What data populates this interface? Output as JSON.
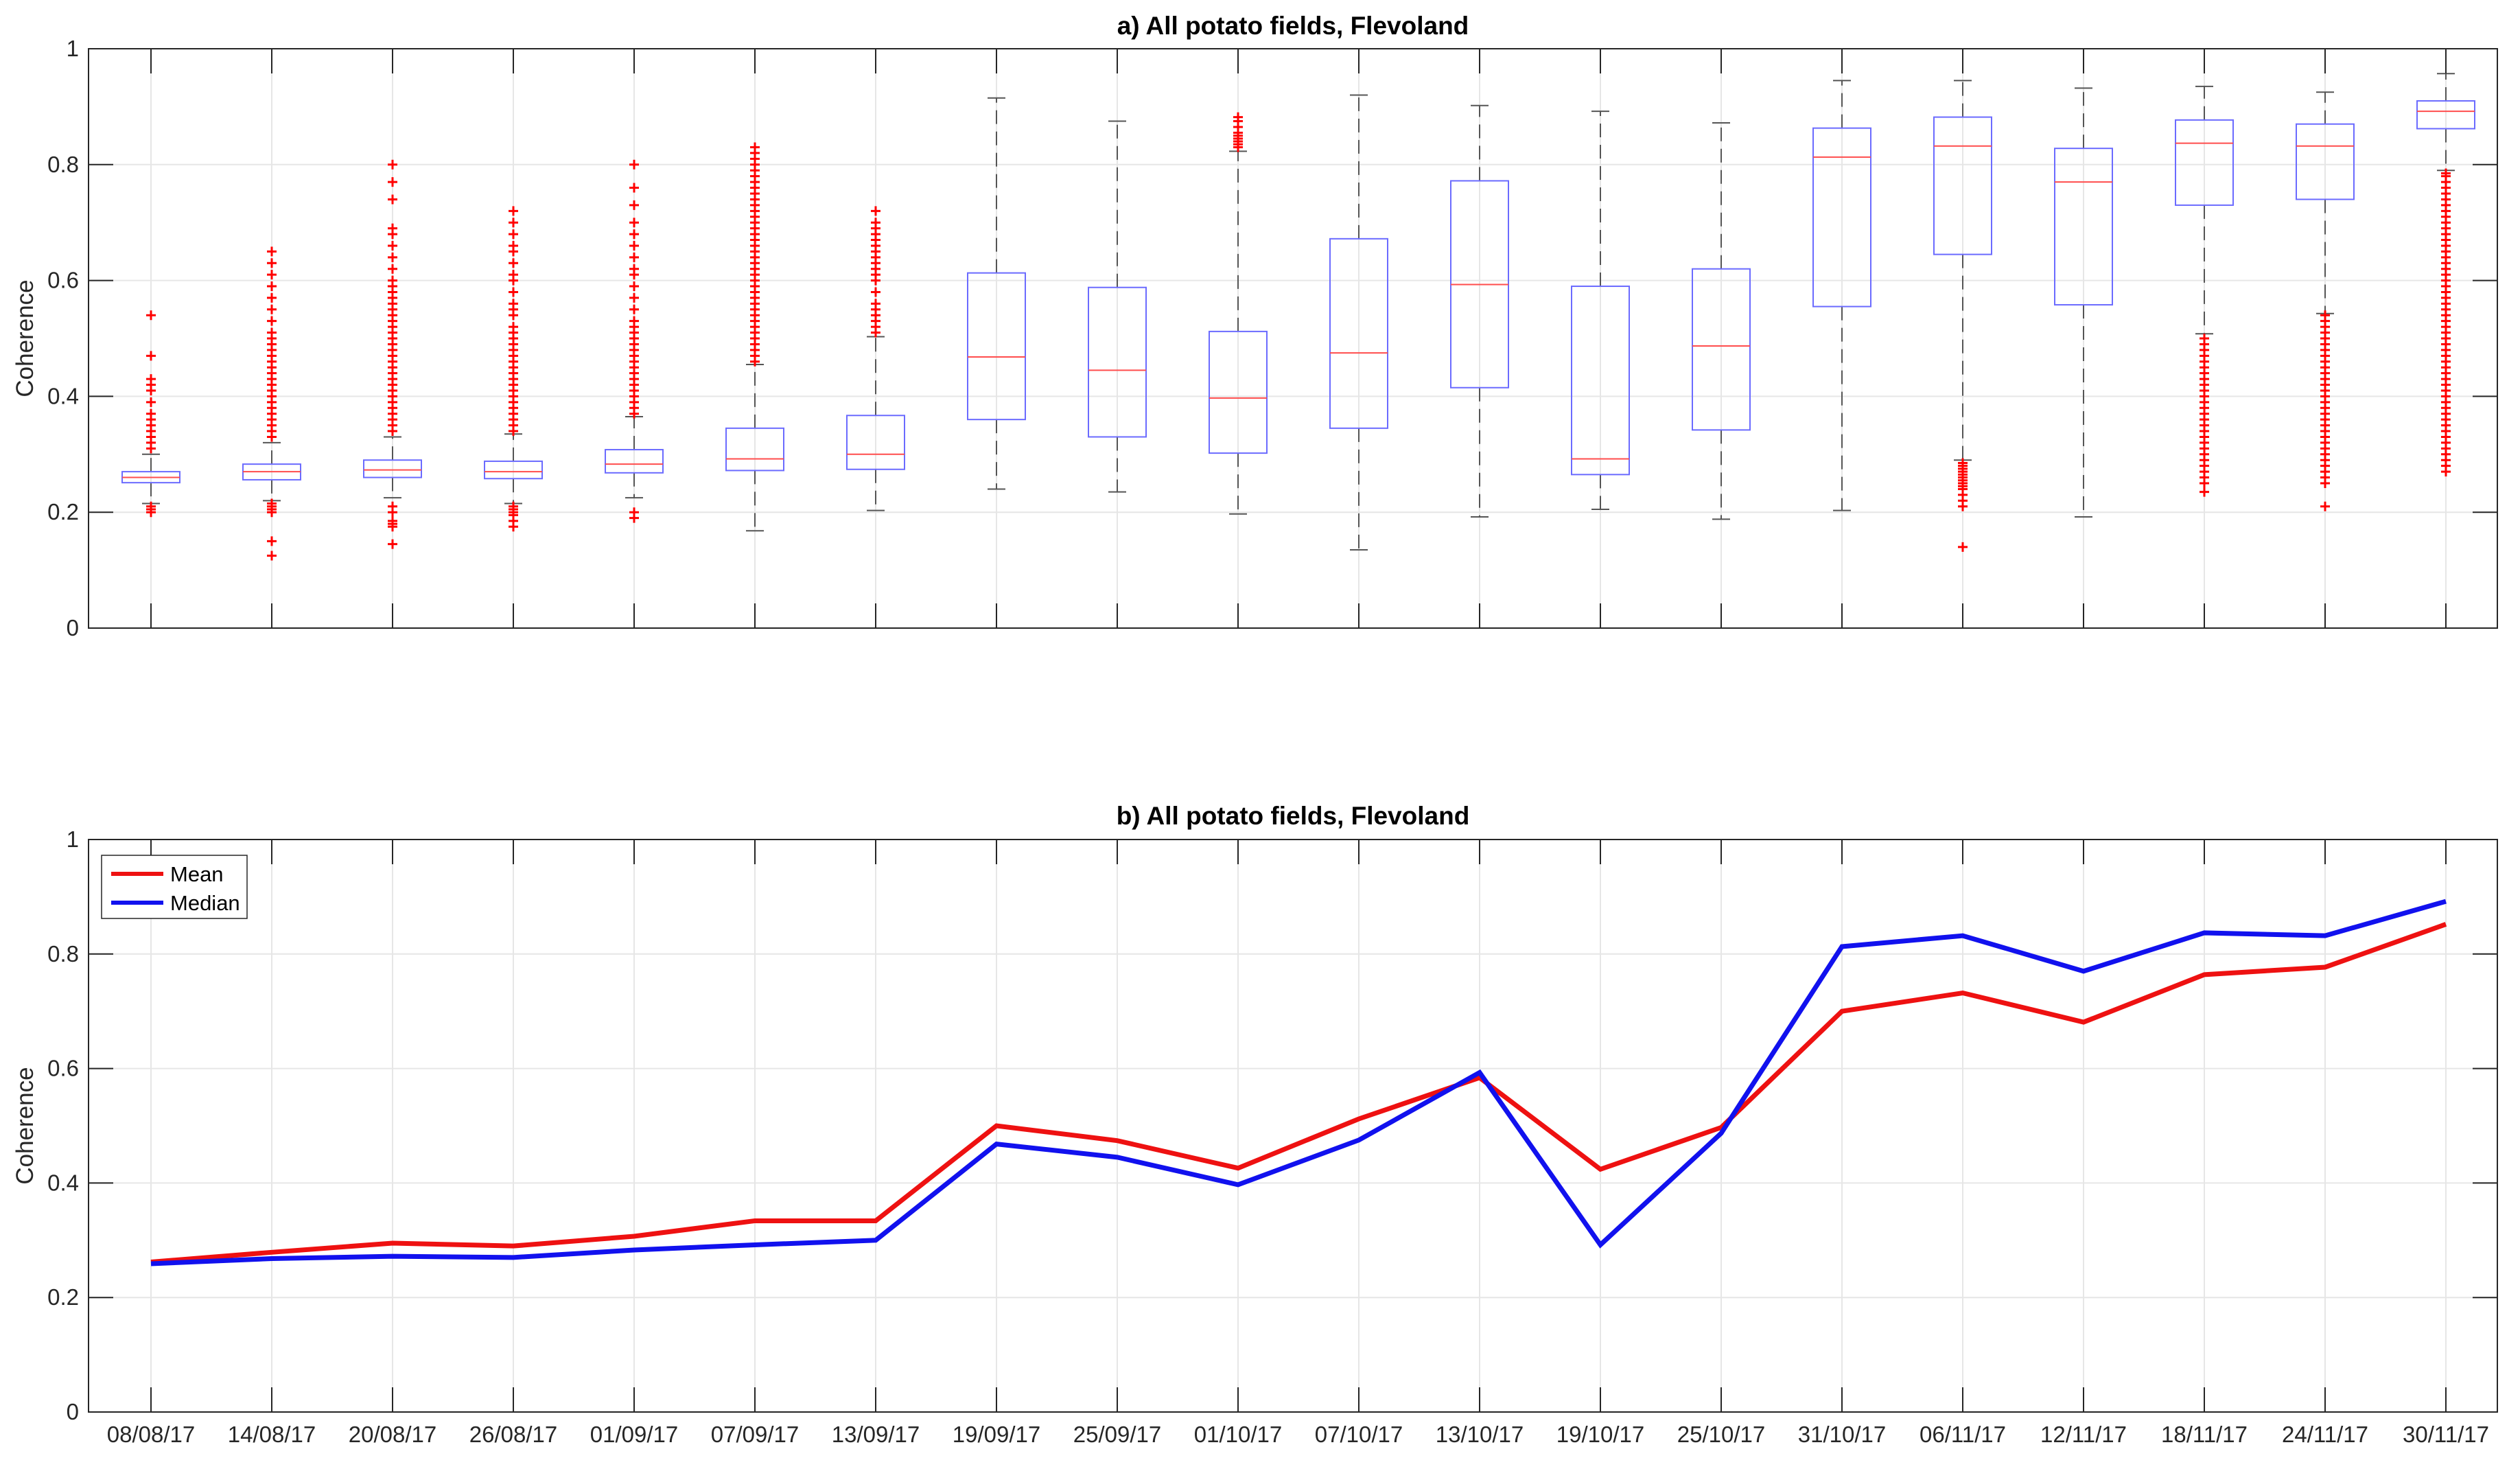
{
  "figure": {
    "dates": [
      "08/08/17",
      "14/08/17",
      "20/08/17",
      "26/08/17",
      "01/09/17",
      "07/09/17",
      "13/09/17",
      "19/09/17",
      "25/09/17",
      "01/10/17",
      "07/10/17",
      "13/10/17",
      "19/10/17",
      "25/10/17",
      "31/10/17",
      "06/11/17",
      "12/11/17",
      "18/11/17",
      "24/11/17",
      "30/11/17"
    ],
    "yticks": [
      "0",
      "0.2",
      "0.4",
      "0.6",
      "0.8",
      "1"
    ],
    "colors": {
      "box": "#6b6bff",
      "median": "#ff4d4d",
      "whisker": "#555555",
      "outlier": "#ff0000",
      "mean_line": "#ee1111",
      "median_line": "#1111ee",
      "grid": "#e6e6e6"
    }
  },
  "chart_data": [
    {
      "type": "box",
      "title": "a) All potato fields, Flevoland",
      "ylabel": "Coherence",
      "ylim": [
        0,
        1
      ],
      "grid": true,
      "categories": [
        "08/08/17",
        "14/08/17",
        "20/08/17",
        "26/08/17",
        "01/09/17",
        "07/09/17",
        "13/09/17",
        "19/09/17",
        "25/09/17",
        "01/10/17",
        "07/10/17",
        "13/10/17",
        "19/10/17",
        "25/10/17",
        "31/10/17",
        "06/11/17",
        "12/11/17",
        "18/11/17",
        "24/11/17",
        "30/11/17"
      ],
      "boxes": [
        {
          "whisker_low": 0.215,
          "q1": 0.251,
          "median": 0.26,
          "q3": 0.27,
          "whisker_high": 0.3,
          "outliers_low": [
            0.2,
            0.205,
            0.21
          ],
          "outliers_high": [
            0.31,
            0.32,
            0.33,
            0.34,
            0.35,
            0.36,
            0.37,
            0.39,
            0.41,
            0.42,
            0.43,
            0.47,
            0.54
          ]
        },
        {
          "whisker_low": 0.22,
          "q1": 0.256,
          "median": 0.27,
          "q3": 0.283,
          "whisker_high": 0.32,
          "outliers_low": [
            0.2,
            0.205,
            0.21,
            0.215,
            0.15,
            0.125
          ],
          "outliers_high": [
            0.33,
            0.34,
            0.35,
            0.36,
            0.37,
            0.38,
            0.39,
            0.4,
            0.41,
            0.42,
            0.43,
            0.44,
            0.45,
            0.46,
            0.47,
            0.48,
            0.49,
            0.5,
            0.51,
            0.53,
            0.55,
            0.57,
            0.59,
            0.61,
            0.63,
            0.65
          ]
        },
        {
          "whisker_low": 0.225,
          "q1": 0.26,
          "median": 0.273,
          "q3": 0.29,
          "whisker_high": 0.33,
          "outliers_low": [
            0.21,
            0.2,
            0.185,
            0.18,
            0.175,
            0.145
          ],
          "outliers_high": [
            0.34,
            0.35,
            0.36,
            0.37,
            0.38,
            0.39,
            0.4,
            0.41,
            0.42,
            0.43,
            0.44,
            0.45,
            0.46,
            0.47,
            0.48,
            0.49,
            0.5,
            0.51,
            0.52,
            0.53,
            0.54,
            0.55,
            0.56,
            0.57,
            0.58,
            0.59,
            0.6,
            0.62,
            0.64,
            0.66,
            0.68,
            0.69,
            0.74,
            0.77,
            0.8
          ]
        },
        {
          "whisker_low": 0.215,
          "q1": 0.258,
          "median": 0.27,
          "q3": 0.288,
          "whisker_high": 0.335,
          "outliers_low": [
            0.21,
            0.205,
            0.2,
            0.195,
            0.185,
            0.175
          ],
          "outliers_high": [
            0.34,
            0.35,
            0.36,
            0.37,
            0.38,
            0.39,
            0.4,
            0.41,
            0.42,
            0.43,
            0.44,
            0.45,
            0.46,
            0.47,
            0.48,
            0.49,
            0.5,
            0.51,
            0.52,
            0.54,
            0.55,
            0.56,
            0.58,
            0.6,
            0.61,
            0.63,
            0.65,
            0.66,
            0.68,
            0.7,
            0.72
          ]
        },
        {
          "whisker_low": 0.225,
          "q1": 0.268,
          "median": 0.283,
          "q3": 0.308,
          "whisker_high": 0.365,
          "outliers_low": [
            0.2,
            0.19
          ],
          "outliers_high": [
            0.37,
            0.38,
            0.39,
            0.4,
            0.41,
            0.42,
            0.43,
            0.44,
            0.45,
            0.46,
            0.47,
            0.48,
            0.49,
            0.5,
            0.51,
            0.52,
            0.53,
            0.55,
            0.57,
            0.59,
            0.61,
            0.62,
            0.64,
            0.66,
            0.68,
            0.7,
            0.73,
            0.76,
            0.8
          ]
        },
        {
          "whisker_low": 0.168,
          "q1": 0.272,
          "median": 0.292,
          "q3": 0.345,
          "whisker_high": 0.455,
          "outliers_low": [],
          "outliers_high": [
            0.46,
            0.47,
            0.48,
            0.49,
            0.5,
            0.51,
            0.52,
            0.53,
            0.54,
            0.55,
            0.56,
            0.57,
            0.58,
            0.59,
            0.6,
            0.61,
            0.62,
            0.63,
            0.64,
            0.65,
            0.66,
            0.67,
            0.68,
            0.69,
            0.7,
            0.71,
            0.72,
            0.73,
            0.74,
            0.75,
            0.76,
            0.77,
            0.78,
            0.79,
            0.8,
            0.81,
            0.82,
            0.83
          ]
        },
        {
          "whisker_low": 0.203,
          "q1": 0.274,
          "median": 0.3,
          "q3": 0.367,
          "whisker_high": 0.503,
          "outliers_low": [],
          "outliers_high": [
            0.51,
            0.52,
            0.53,
            0.54,
            0.55,
            0.56,
            0.58,
            0.6,
            0.61,
            0.62,
            0.63,
            0.64,
            0.65,
            0.66,
            0.67,
            0.68,
            0.69,
            0.7,
            0.72
          ]
        },
        {
          "whisker_low": 0.24,
          "q1": 0.36,
          "median": 0.468,
          "q3": 0.613,
          "whisker_high": 0.915,
          "outliers_low": [],
          "outliers_high": []
        },
        {
          "whisker_low": 0.235,
          "q1": 0.33,
          "median": 0.445,
          "q3": 0.588,
          "whisker_high": 0.875,
          "outliers_low": [],
          "outliers_high": []
        },
        {
          "whisker_low": 0.197,
          "q1": 0.302,
          "median": 0.397,
          "q3": 0.512,
          "whisker_high": 0.823,
          "outliers_low": [],
          "outliers_high": [
            0.83,
            0.835,
            0.84,
            0.845,
            0.85,
            0.855,
            0.865,
            0.875,
            0.882
          ]
        },
        {
          "whisker_low": 0.135,
          "q1": 0.345,
          "median": 0.475,
          "q3": 0.672,
          "whisker_high": 0.92,
          "outliers_low": [],
          "outliers_high": []
        },
        {
          "whisker_low": 0.192,
          "q1": 0.415,
          "median": 0.593,
          "q3": 0.772,
          "whisker_high": 0.902,
          "outliers_low": [],
          "outliers_high": []
        },
        {
          "whisker_low": 0.205,
          "q1": 0.265,
          "median": 0.292,
          "q3": 0.59,
          "whisker_high": 0.892,
          "outliers_low": [],
          "outliers_high": []
        },
        {
          "whisker_low": 0.188,
          "q1": 0.342,
          "median": 0.487,
          "q3": 0.62,
          "whisker_high": 0.872,
          "outliers_low": [],
          "outliers_high": []
        },
        {
          "whisker_low": 0.203,
          "q1": 0.555,
          "median": 0.813,
          "q3": 0.863,
          "whisker_high": 0.945,
          "outliers_low": [],
          "outliers_high": []
        },
        {
          "whisker_low": 0.29,
          "q1": 0.645,
          "median": 0.832,
          "q3": 0.882,
          "whisker_high": 0.945,
          "outliers_low": [
            0.285,
            0.28,
            0.275,
            0.27,
            0.265,
            0.26,
            0.255,
            0.25,
            0.245,
            0.24,
            0.23,
            0.22,
            0.21,
            0.14
          ],
          "outliers_high": []
        },
        {
          "whisker_low": 0.192,
          "q1": 0.558,
          "median": 0.77,
          "q3": 0.828,
          "whisker_high": 0.932,
          "outliers_low": [],
          "outliers_high": []
        },
        {
          "whisker_low": 0.508,
          "q1": 0.73,
          "median": 0.837,
          "q3": 0.877,
          "whisker_high": 0.935,
          "outliers_low": [
            0.5,
            0.49,
            0.48,
            0.47,
            0.46,
            0.45,
            0.44,
            0.43,
            0.42,
            0.41,
            0.4,
            0.39,
            0.38,
            0.37,
            0.36,
            0.35,
            0.34,
            0.33,
            0.32,
            0.31,
            0.3,
            0.29,
            0.28,
            0.27,
            0.26,
            0.25,
            0.235
          ],
          "outliers_high": []
        },
        {
          "whisker_low": 0.543,
          "q1": 0.74,
          "median": 0.832,
          "q3": 0.87,
          "whisker_high": 0.925,
          "outliers_low": [
            0.54,
            0.53,
            0.52,
            0.51,
            0.5,
            0.49,
            0.48,
            0.47,
            0.46,
            0.45,
            0.44,
            0.43,
            0.42,
            0.41,
            0.4,
            0.39,
            0.38,
            0.37,
            0.36,
            0.35,
            0.34,
            0.33,
            0.32,
            0.31,
            0.3,
            0.29,
            0.28,
            0.27,
            0.26,
            0.25,
            0.21
          ],
          "outliers_high": []
        },
        {
          "whisker_low": 0.79,
          "q1": 0.862,
          "median": 0.892,
          "q3": 0.91,
          "whisker_high": 0.957,
          "outliers_low": [
            0.785,
            0.78,
            0.77,
            0.76,
            0.75,
            0.74,
            0.73,
            0.72,
            0.71,
            0.7,
            0.69,
            0.68,
            0.67,
            0.66,
            0.65,
            0.64,
            0.63,
            0.62,
            0.61,
            0.6,
            0.59,
            0.58,
            0.57,
            0.56,
            0.55,
            0.54,
            0.53,
            0.52,
            0.51,
            0.5,
            0.49,
            0.48,
            0.47,
            0.46,
            0.45,
            0.44,
            0.43,
            0.42,
            0.41,
            0.4,
            0.39,
            0.38,
            0.37,
            0.36,
            0.35,
            0.34,
            0.33,
            0.32,
            0.31,
            0.3,
            0.29,
            0.28,
            0.27
          ],
          "outliers_high": []
        }
      ]
    },
    {
      "type": "line",
      "title": "b) All potato fields, Flevoland",
      "ylabel": "Coherence",
      "ylim": [
        0,
        1
      ],
      "grid": true,
      "legend_position": "top-left",
      "x": [
        "08/08/17",
        "14/08/17",
        "20/08/17",
        "26/08/17",
        "01/09/17",
        "07/09/17",
        "13/09/17",
        "19/09/17",
        "25/09/17",
        "01/10/17",
        "07/10/17",
        "13/10/17",
        "19/10/17",
        "25/10/17",
        "31/10/17",
        "06/11/17",
        "12/11/17",
        "18/11/17",
        "24/11/17",
        "30/11/17"
      ],
      "series": [
        {
          "name": "Mean",
          "color": "#ee1111",
          "values": [
            0.262,
            0.279,
            0.295,
            0.29,
            0.307,
            0.334,
            0.334,
            0.5,
            0.474,
            0.426,
            0.512,
            0.584,
            0.424,
            0.497,
            0.7,
            0.732,
            0.681,
            0.764,
            0.777,
            0.852
          ]
        },
        {
          "name": "Median",
          "color": "#1111ee",
          "values": [
            0.259,
            0.268,
            0.272,
            0.27,
            0.283,
            0.292,
            0.3,
            0.468,
            0.445,
            0.397,
            0.475,
            0.593,
            0.292,
            0.487,
            0.813,
            0.832,
            0.77,
            0.837,
            0.832,
            0.892
          ]
        }
      ]
    }
  ]
}
